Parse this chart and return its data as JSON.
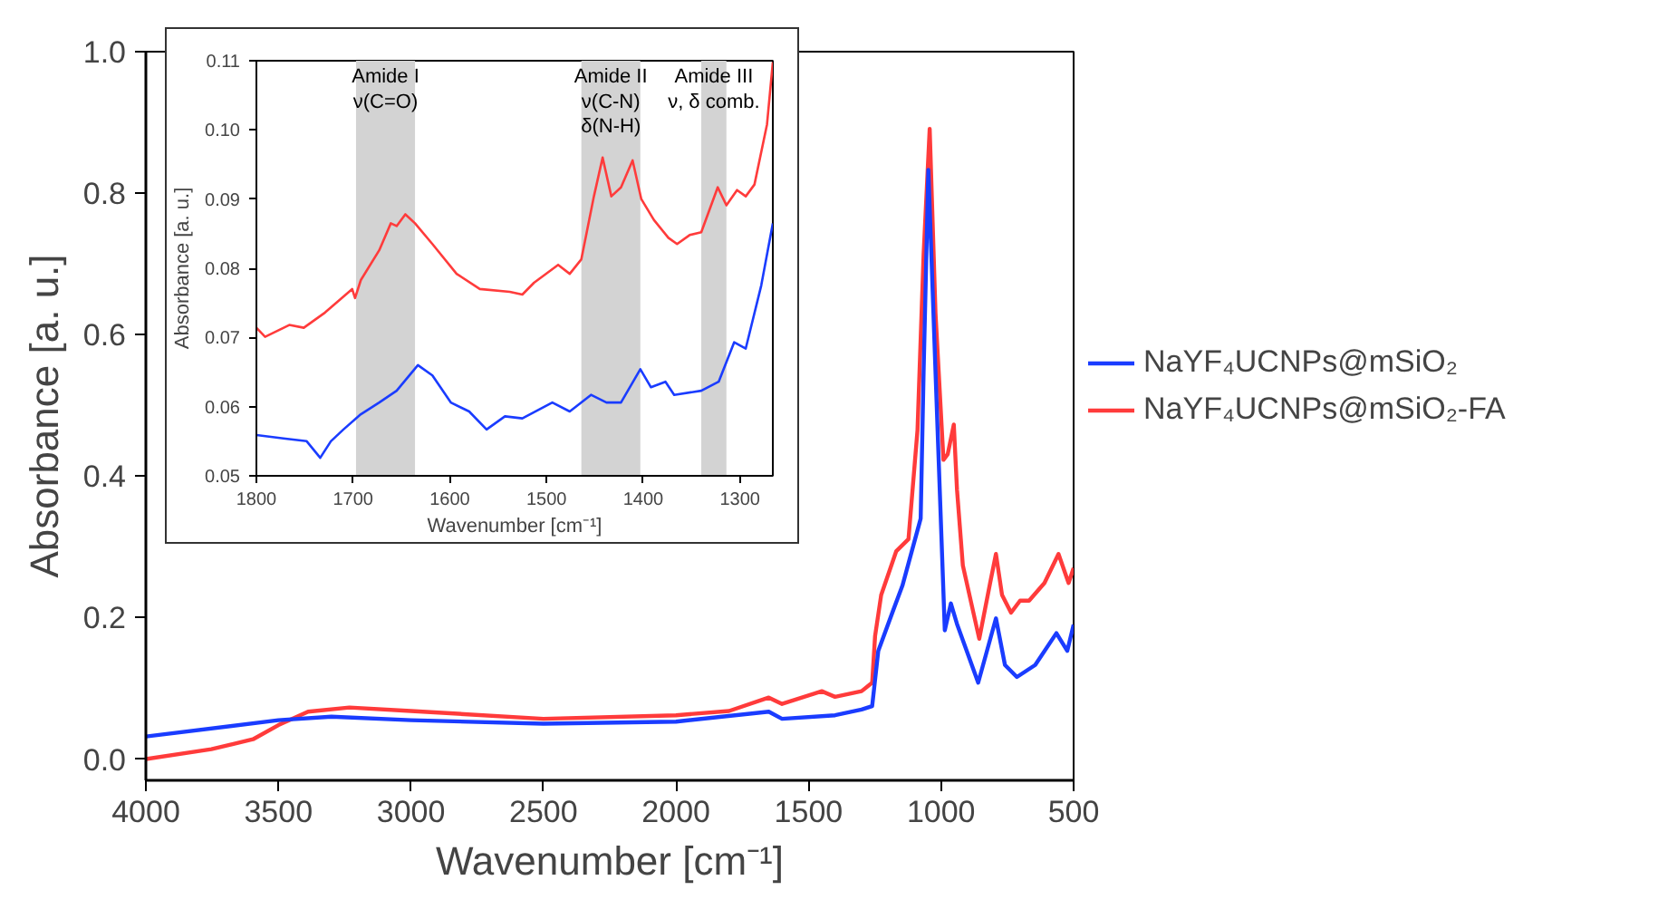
{
  "chart_data": [
    {
      "type": "line",
      "xlabel": "Wavenumber [cm⁻¹]",
      "ylabel": "Absorbance [a. u.]",
      "xlim": [
        4000,
        500
      ],
      "ylim": [
        -0.03,
        1.0
      ],
      "xticks": [
        4000,
        3500,
        3000,
        2500,
        2000,
        1500,
        1000,
        500
      ],
      "yticks": [
        {
          "value": 0,
          "label": "0.0"
        },
        {
          "value": 0.2,
          "label": "0.2"
        },
        {
          "value": 0.4,
          "label": "0.4"
        },
        {
          "value": 0.6,
          "label": "0.6"
        },
        {
          "value": 0.8,
          "label": "0.8"
        },
        {
          "value": 1.0,
          "label": "1.0"
        }
      ],
      "grid": false,
      "legend": "right",
      "series": [
        {
          "name": "NaYF₄UCNPs@mSiO₂",
          "color": "#1a3cff",
          "x": [
            4000,
            3500,
            3300,
            3000,
            2500,
            2000,
            1650,
            1600,
            1400,
            1300,
            1260,
            1237,
            1180,
            1146,
            1077,
            1066,
            1048,
            1021,
            986,
            963,
            940,
            860,
            793,
            759,
            714,
            645,
            565,
            524,
            500
          ],
          "values": [
            0.032,
            0.055,
            0.06,
            0.055,
            0.05,
            0.053,
            0.067,
            0.057,
            0.062,
            0.07,
            0.075,
            0.153,
            0.211,
            0.245,
            0.34,
            0.547,
            0.833,
            0.547,
            0.182,
            0.22,
            0.191,
            0.108,
            0.199,
            0.133,
            0.116,
            0.133,
            0.178,
            0.153,
            0.19
          ]
        },
        {
          "name": "NaYF₄UCNPs@mSiO₂-FA",
          "color": "#ff3b3b",
          "x": [
            4000,
            3753,
            3596,
            3500,
            3388,
            3232,
            3000,
            2500,
            2000,
            1800,
            1650,
            1600,
            1450,
            1400,
            1300,
            1260,
            1249,
            1226,
            1169,
            1123,
            1089,
            1066,
            1043,
            1021,
            991,
            975,
            952,
            940,
            918,
            856,
            815,
            793,
            770,
            736,
            702,
            668,
            610,
            557,
            519,
            500
          ],
          "values": [
            0.0,
            0.014,
            0.028,
            0.048,
            0.067,
            0.073,
            0.068,
            0.057,
            0.062,
            0.068,
            0.087,
            0.078,
            0.096,
            0.088,
            0.096,
            0.108,
            0.174,
            0.232,
            0.294,
            0.311,
            0.465,
            0.713,
            0.891,
            0.63,
            0.423,
            0.431,
            0.473,
            0.381,
            0.274,
            0.17,
            0.249,
            0.29,
            0.232,
            0.207,
            0.224,
            0.224,
            0.249,
            0.29,
            0.249,
            0.27
          ]
        }
      ]
    },
    {
      "type": "line",
      "xlabel": "Wavenumber [cm⁻¹]",
      "ylabel": "Absorbance [a. u.]",
      "xlim": [
        1800,
        1266
      ],
      "ylim": [
        0.05,
        0.11
      ],
      "xticks": [
        1800,
        1700,
        1600,
        1500,
        1400,
        1300
      ],
      "yticks": [
        {
          "value": 0.05,
          "label": "0.05"
        },
        {
          "value": 0.06,
          "label": "0.06"
        },
        {
          "value": 0.07,
          "label": "0.07"
        },
        {
          "value": 0.08,
          "label": "0.08"
        },
        {
          "value": 0.09,
          "label": "0.09"
        },
        {
          "value": 0.1,
          "label": "0.10"
        },
        {
          "value": 0.11,
          "label": "0.11"
        }
      ],
      "grid": false,
      "bands": [
        {
          "axis": "x",
          "from": 1697,
          "to": 1636,
          "label": "Amide I\nν(C=O)",
          "color": "#d3d3d3"
        },
        {
          "axis": "x",
          "from": 1464,
          "to": 1403,
          "label": "Amide II\nν(C-N)\nδ(N-H)",
          "color": "#d3d3d3"
        },
        {
          "axis": "x",
          "from": 1340,
          "to": 1314,
          "label": "Amide III\nν, δ comb.",
          "color": "#d3d3d3"
        }
      ],
      "series": [
        {
          "color": "#1a3cff",
          "x": [
            1800,
            1772,
            1748,
            1734,
            1723,
            1710,
            1692,
            1673,
            1655,
            1633,
            1618,
            1599,
            1580,
            1562,
            1543,
            1525,
            1494,
            1476,
            1454,
            1438,
            1423,
            1403,
            1392,
            1377,
            1368,
            1340,
            1322,
            1306,
            1294,
            1278,
            1266
          ],
          "values": [
            0.0559,
            0.0554,
            0.055,
            0.0526,
            0.055,
            0.0567,
            0.0589,
            0.0606,
            0.0623,
            0.066,
            0.0645,
            0.0606,
            0.0593,
            0.0567,
            0.0586,
            0.0583,
            0.0606,
            0.0593,
            0.0617,
            0.0606,
            0.0606,
            0.0654,
            0.0628,
            0.0636,
            0.0617,
            0.0623,
            0.0636,
            0.0693,
            0.0684,
            0.0775,
            0.0865
          ]
        },
        {
          "color": "#ff3b3b",
          "x": [
            1800,
            1791,
            1766,
            1751,
            1729,
            1701,
            1698,
            1692,
            1673,
            1661,
            1655,
            1646,
            1636,
            1618,
            1593,
            1569,
            1538,
            1525,
            1513,
            1488,
            1476,
            1464,
            1451,
            1442,
            1433,
            1423,
            1411,
            1402,
            1389,
            1374,
            1365,
            1352,
            1340,
            1323,
            1314,
            1303,
            1294,
            1285,
            1272,
            1266
          ],
          "values": [
            0.0714,
            0.0701,
            0.0718,
            0.0714,
            0.0736,
            0.077,
            0.0757,
            0.0783,
            0.0826,
            0.0865,
            0.0861,
            0.0878,
            0.0865,
            0.0835,
            0.0792,
            0.077,
            0.0766,
            0.0762,
            0.0779,
            0.0805,
            0.0792,
            0.0813,
            0.0904,
            0.096,
            0.0904,
            0.0917,
            0.0956,
            0.09,
            0.087,
            0.0844,
            0.0835,
            0.0848,
            0.0852,
            0.0917,
            0.0891,
            0.0913,
            0.0904,
            0.0921,
            0.1008,
            0.1098
          ]
        }
      ]
    }
  ]
}
